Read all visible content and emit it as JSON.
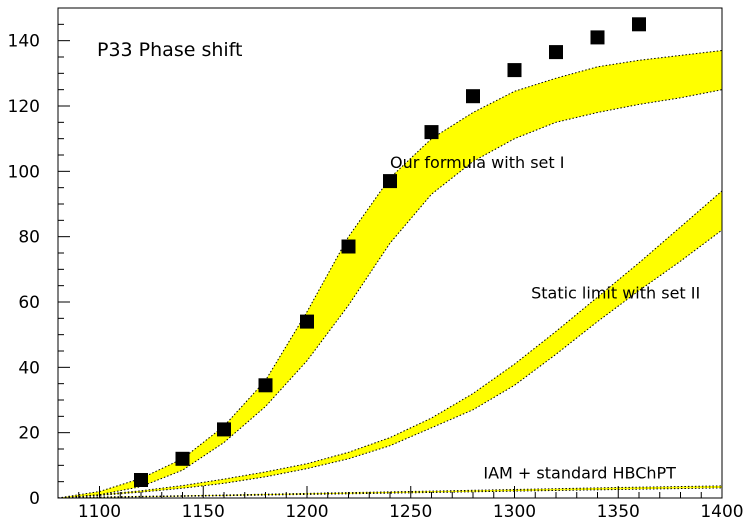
{
  "chart_data": {
    "type": "scatter",
    "title": "P33 Phase shift",
    "xlabel": "",
    "ylabel": "",
    "xlim": [
      1080,
      1400
    ],
    "ylim": [
      0,
      150
    ],
    "x_ticks": [
      1100,
      1150,
      1200,
      1250,
      1300,
      1350,
      1400
    ],
    "y_ticks": [
      0,
      20,
      40,
      60,
      80,
      100,
      120,
      140
    ],
    "grid": false,
    "legend": "none",
    "colors": {
      "band": "#ffff00",
      "band_edge": "#000000",
      "marker": "#000000"
    },
    "annotations": [
      {
        "text": "Our formula with set I",
        "x": 1240,
        "y": 101
      },
      {
        "text": "Static limit with set II",
        "x": 1308,
        "y": 61
      },
      {
        "text": "IAM + standard HBChPT",
        "x": 1285,
        "y": 6
      }
    ],
    "series": [
      {
        "type": "scatter",
        "marker": "square",
        "x": [
          1120,
          1140,
          1160,
          1180,
          1200,
          1220,
          1240,
          1260,
          1280,
          1300,
          1320,
          1340,
          1360
        ],
        "y": [
          5.5,
          12,
          21,
          34.5,
          54,
          77,
          97,
          112,
          123,
          131,
          136.5,
          141,
          145
        ]
      },
      {
        "type": "band",
        "x": [
          1080,
          1100,
          1120,
          1140,
          1160,
          1180,
          1200,
          1220,
          1240,
          1260,
          1280,
          1300,
          1320,
          1340,
          1360,
          1380,
          1400
        ],
        "lower": [
          0,
          1,
          3.5,
          8.5,
          17,
          28,
          42,
          59,
          78,
          93,
          103,
          110,
          115,
          118,
          120.5,
          122.5,
          125
        ],
        "upper": [
          0,
          2,
          6,
          12,
          22,
          36,
          57,
          80,
          98,
          110,
          118,
          124.5,
          128.5,
          132,
          134,
          135.5,
          137
        ]
      },
      {
        "type": "band",
        "x": [
          1080,
          1100,
          1120,
          1140,
          1160,
          1180,
          1200,
          1220,
          1240,
          1260,
          1280,
          1300,
          1320,
          1340,
          1360,
          1380,
          1400
        ],
        "lower": [
          0,
          0.8,
          1.8,
          3,
          4.5,
          6.5,
          9,
          12,
          16,
          21.5,
          27,
          34.5,
          44,
          54,
          63.5,
          72.5,
          82
        ],
        "upper": [
          0,
          1,
          2.2,
          3.8,
          5.8,
          8,
          10.5,
          14,
          18.5,
          24.5,
          32,
          41,
          51,
          61.5,
          72,
          83,
          94
        ]
      },
      {
        "type": "band",
        "x": [
          1080,
          1100,
          1150,
          1200,
          1250,
          1300,
          1350,
          1400
        ],
        "lower": [
          0,
          0.2,
          0.6,
          1.1,
          1.6,
          2.1,
          2.6,
          3.1
        ],
        "upper": [
          0,
          0.3,
          0.8,
          1.4,
          2,
          2.6,
          3.2,
          3.7
        ]
      }
    ]
  }
}
